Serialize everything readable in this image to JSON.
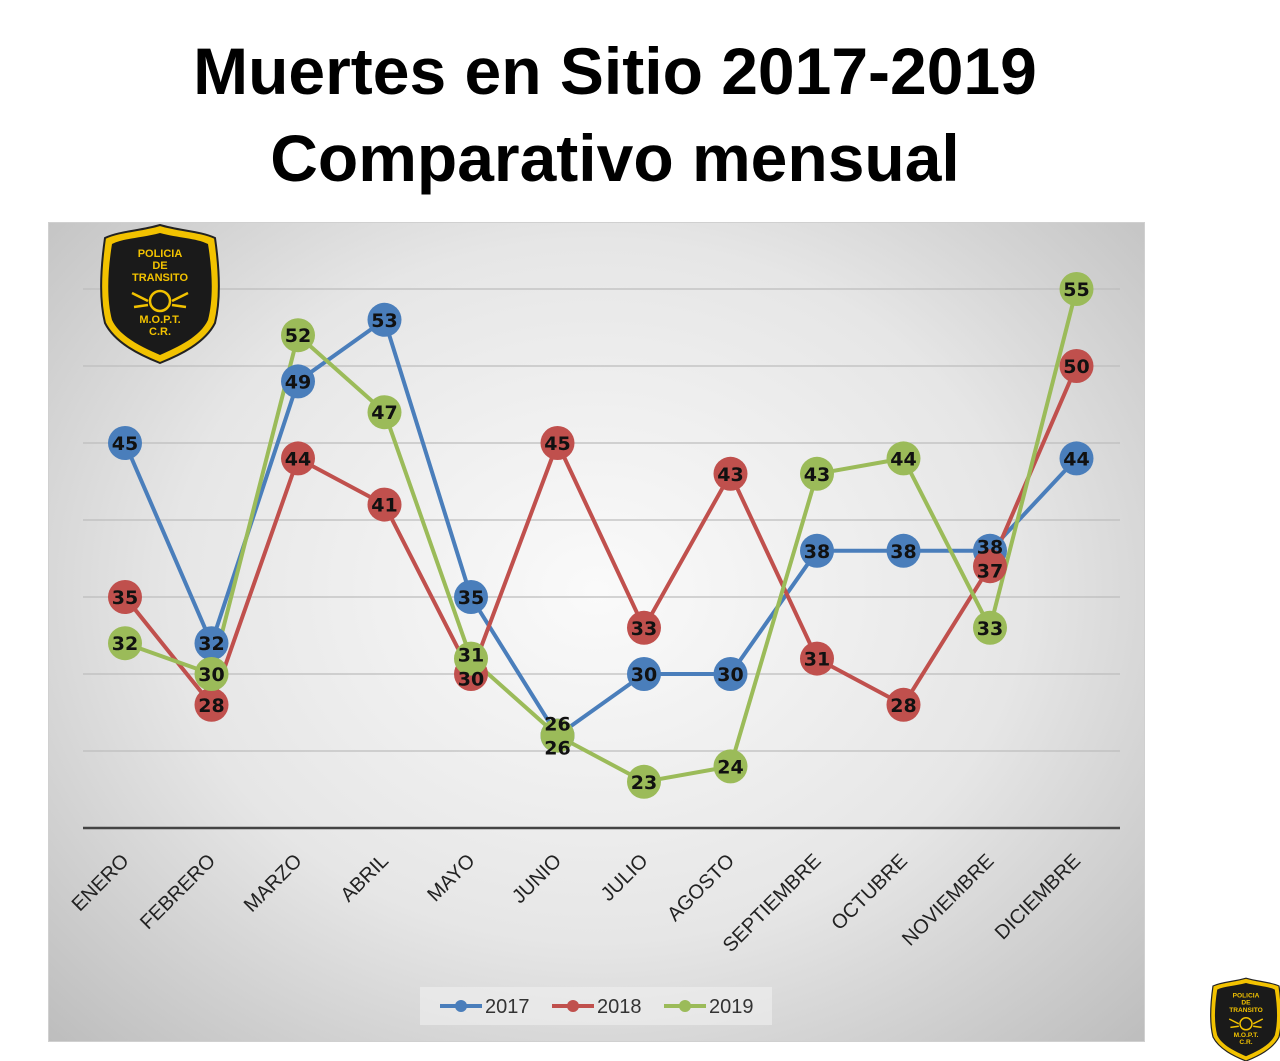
{
  "chart_data": {
    "type": "line",
    "title": "Muertes en Sitio 2017-2019",
    "subtitle": "Comparativo mensual",
    "categories": [
      "ENERO",
      "FEBRERO",
      "MARZO",
      "ABRIL",
      "MAYO",
      "JUNIO",
      "JULIO",
      "AGOSTO",
      "SEPTIEMBRE",
      "OCTUBRE",
      "NOVIEMBRE",
      "DICIEMBRE"
    ],
    "series": [
      {
        "name": "2017",
        "color": "#4a7ebb",
        "values": [
          45,
          32,
          49,
          53,
          35,
          26,
          30,
          30,
          38,
          38,
          38,
          44
        ]
      },
      {
        "name": "2018",
        "color": "#c0504d",
        "values": [
          35,
          28,
          44,
          41,
          30,
          45,
          33,
          43,
          31,
          28,
          37,
          50
        ]
      },
      {
        "name": "2019",
        "color": "#9bbb59",
        "values": [
          32,
          30,
          52,
          47,
          31,
          26,
          23,
          24,
          43,
          44,
          33,
          55
        ]
      }
    ],
    "ylim": [
      20,
      55
    ],
    "grid": true,
    "legend": "bottom",
    "data_labels": true
  },
  "logo": {
    "text": "POLICIA DE TRANSITO M.O.P.T. C.R."
  }
}
